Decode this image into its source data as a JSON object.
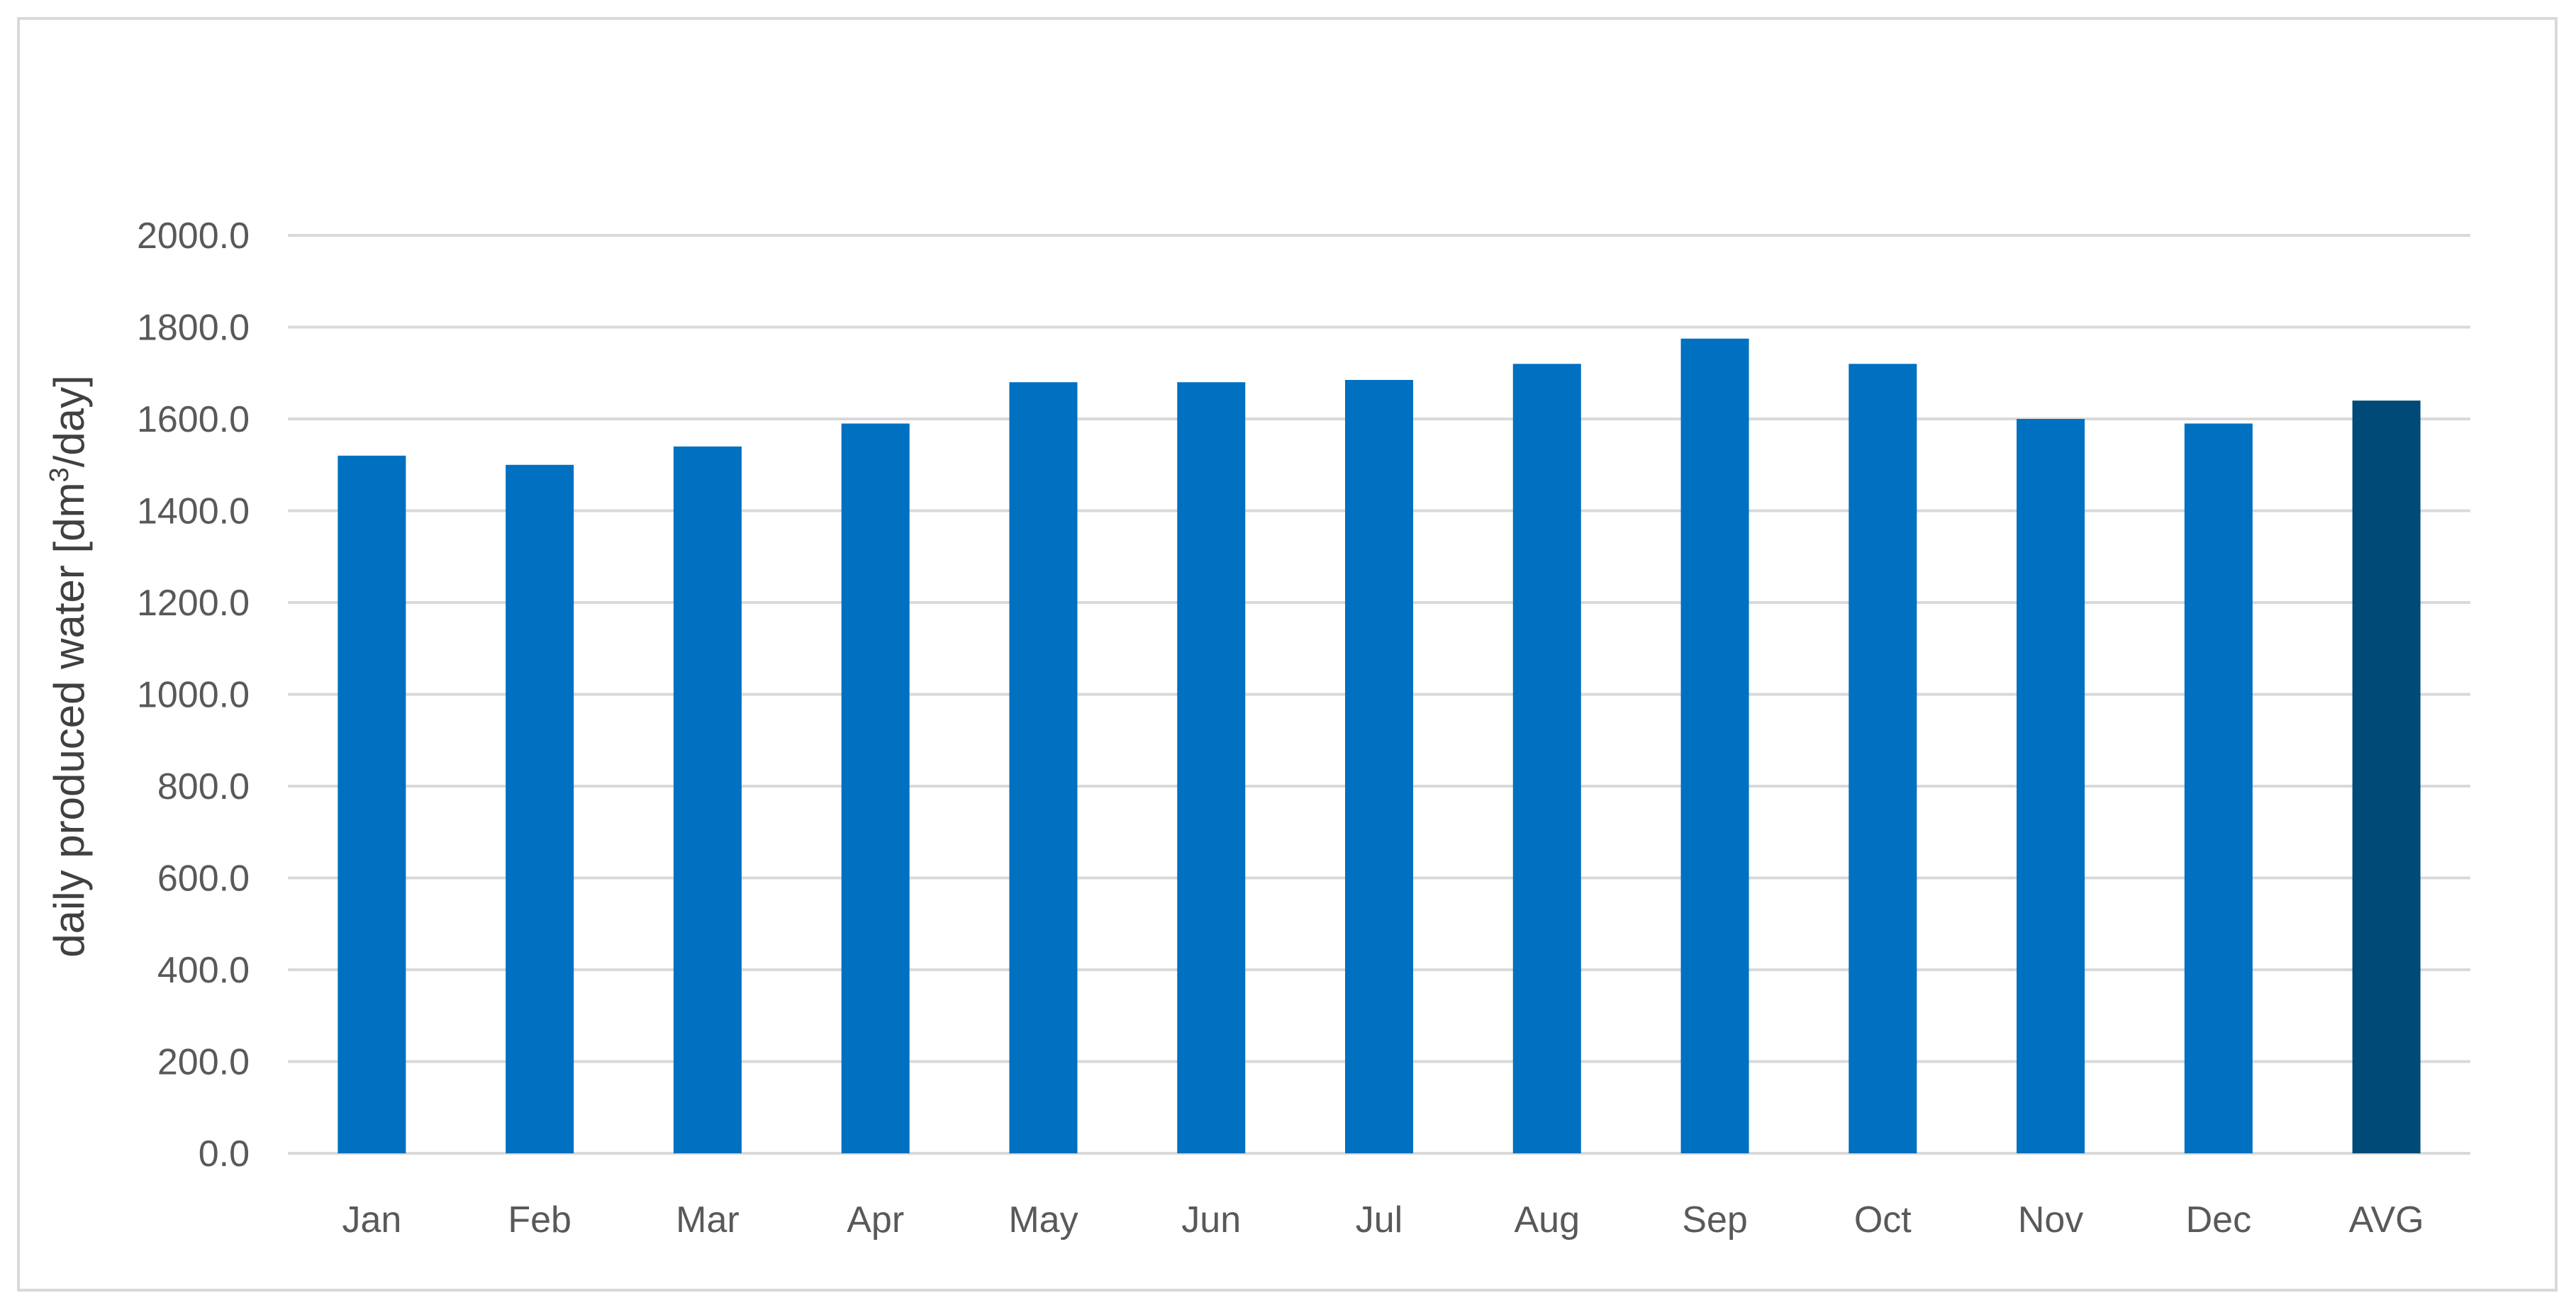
{
  "chart_data": {
    "type": "bar",
    "title": "",
    "xlabel": "",
    "ylabel": {
      "prefix": "daily produced  water [dm",
      "superscript": "3",
      "suffix": "/day]"
    },
    "categories": [
      "Jan",
      "Feb",
      "Mar",
      "Apr",
      "May",
      "Jun",
      "Jul",
      "Aug",
      "Sep",
      "Oct",
      "Nov",
      "Dec",
      "AVG"
    ],
    "values": [
      1520,
      1500,
      1540,
      1590,
      1680,
      1680,
      1685,
      1720,
      1775,
      1720,
      1600,
      1590,
      1640
    ],
    "ylim": [
      0,
      2000
    ],
    "yticks": [
      "0.0",
      "200.0",
      "400.0",
      "600.0",
      "800.0",
      "1000.0",
      "1200.0",
      "1400.0",
      "1600.0",
      "1800.0",
      "2000.0"
    ],
    "ytick_values": [
      0,
      200,
      400,
      600,
      800,
      1000,
      1200,
      1400,
      1600,
      1800,
      2000
    ],
    "grid": true,
    "legend": "none",
    "colors": {
      "bar": "#0070C0",
      "highlight_bar": "#004A78",
      "gridline": "#D9D9D9",
      "tick_text": "#595959",
      "frame": "#D9D9D9"
    },
    "highlight_category": "AVG"
  }
}
